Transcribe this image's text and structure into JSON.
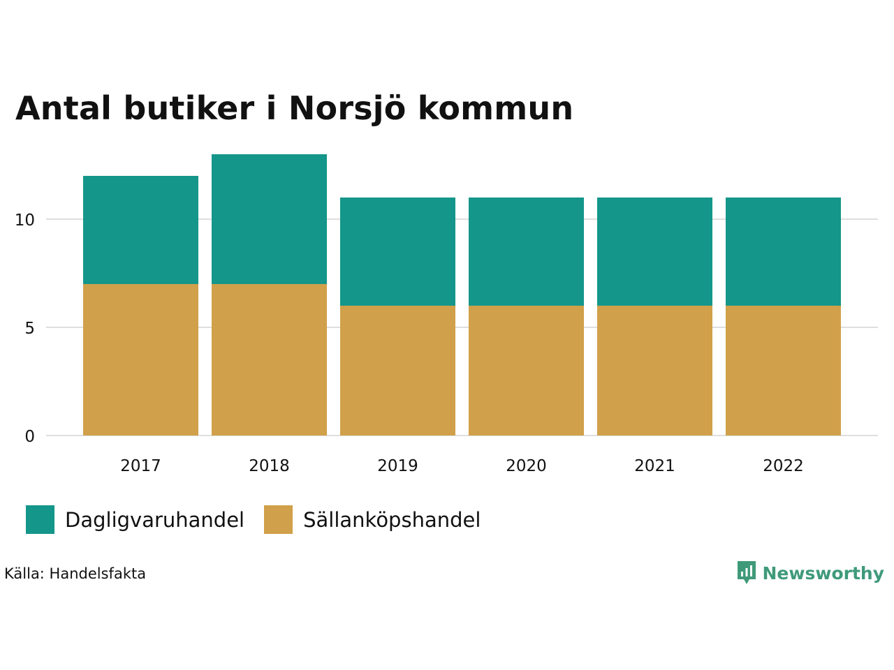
{
  "title": "Antal butiker i Norsjö kommun",
  "source": "Källa: Handelsfakta",
  "brand": {
    "name": "Newsworthy",
    "icon": "newsworthy-logo-icon",
    "color": "#3f9a7a"
  },
  "colors": {
    "daglig": "#14968a",
    "sallan": "#d1a04a",
    "grid": "#dedede",
    "text": "#111111"
  },
  "chart_data": {
    "type": "bar",
    "stacked": true,
    "categories": [
      "2017",
      "2018",
      "2019",
      "2020",
      "2021",
      "2022"
    ],
    "series": [
      {
        "name": "Sällanköpshandel",
        "color": "#d1a04a",
        "values": [
          7,
          7,
          6,
          6,
          6,
          6
        ]
      },
      {
        "name": "Dagligvaruhandel",
        "color": "#14968a",
        "values": [
          5,
          6,
          5,
          5,
          5,
          5
        ]
      }
    ],
    "title": "Antal butiker i Norsjö kommun",
    "xlabel": "",
    "ylabel": "",
    "ylim": [
      0,
      13
    ],
    "yticks": [
      "0",
      "5",
      "10"
    ],
    "grid": true,
    "legend": "bottom-left",
    "legend_order": [
      "Dagligvaruhandel",
      "Sällanköpshandel"
    ]
  }
}
